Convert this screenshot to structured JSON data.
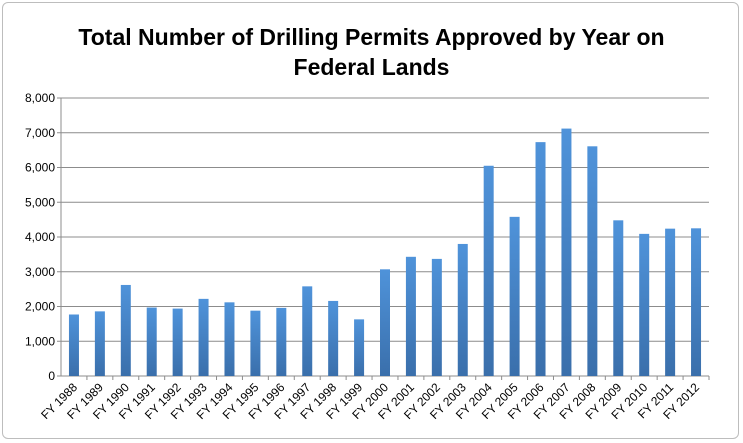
{
  "chart_data": {
    "type": "bar",
    "title_line1": "Total Number of Drilling Permits Approved by Year on",
    "title_line2": "Federal Lands",
    "xlabel": "",
    "ylabel": "",
    "ylim": [
      0,
      8000
    ],
    "yticks": [
      "0",
      "1,000",
      "2,000",
      "3,000",
      "4,000",
      "5,000",
      "6,000",
      "7,000",
      "8,000"
    ],
    "grid": true,
    "legend": "none",
    "categories": [
      "FY 1988",
      "FY 1989",
      "FY 1990",
      "FY 1991",
      "FY 1992",
      "FY 1993",
      "FY 1994",
      "FY 1995",
      "FY 1996",
      "FY 1997",
      "FY 1998",
      "FY 1999",
      "FY 2000",
      "FY 2001",
      "FY 2002",
      "FY 2003",
      "FY 2004",
      "FY 2005",
      "FY 2006",
      "FY 2007",
      "FY 2008",
      "FY 2009",
      "FY 2010",
      "FY 2011",
      "FY 2012"
    ],
    "values": [
      1770,
      1860,
      2620,
      1970,
      1940,
      2220,
      2120,
      1880,
      1960,
      2580,
      2160,
      1630,
      3070,
      3430,
      3370,
      3800,
      6050,
      4580,
      6730,
      7120,
      6610,
      4480,
      4090,
      4240,
      4250
    ],
    "bar_color": "#4a8bd0"
  }
}
